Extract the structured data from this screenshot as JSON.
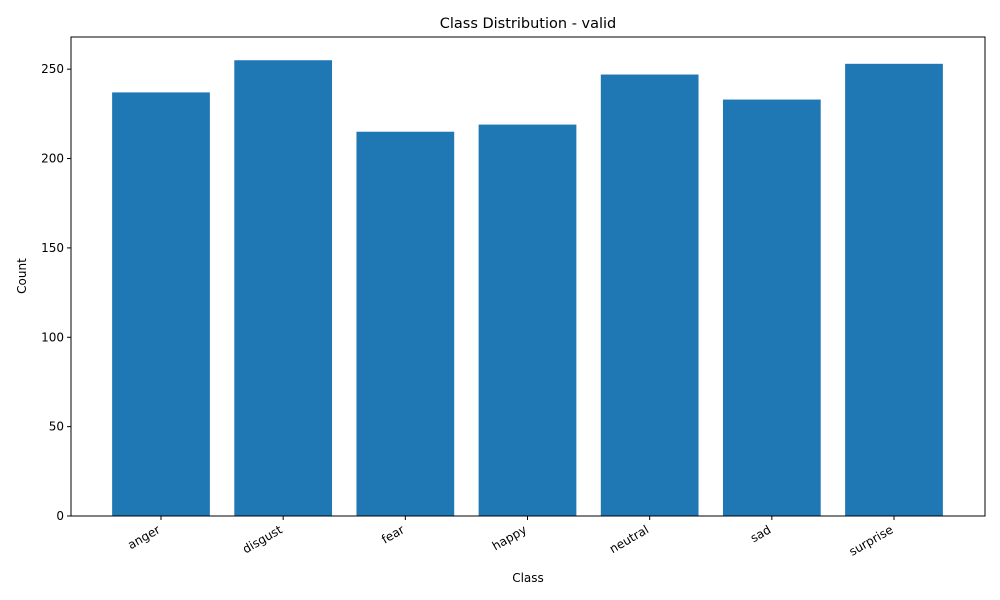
{
  "chart_data": {
    "type": "bar",
    "title": "Class Distribution - valid",
    "xlabel": "Class",
    "ylabel": "Count",
    "categories": [
      "anger",
      "disgust",
      "fear",
      "happy",
      "neutral",
      "sad",
      "surprise"
    ],
    "values": [
      237,
      255,
      215,
      219,
      247,
      233,
      253
    ],
    "ylim": [
      0,
      268
    ],
    "yticks": [
      0,
      50,
      100,
      150,
      200,
      250
    ],
    "bar_color": "#1f77b4",
    "grid": false,
    "legend": "none"
  }
}
